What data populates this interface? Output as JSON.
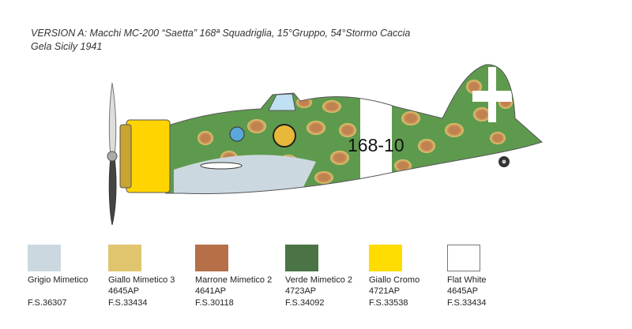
{
  "header": {
    "title_line1": "VERSION A: Macchi MC-200 “Saetta” 168ª Squadriglia, 15°Gruppo, 54°Stormo Caccia",
    "title_line2": "Gela Sicily 1941"
  },
  "aircraft": {
    "fuselage_code": "168-10"
  },
  "swatches": [
    {
      "name": "Grigio Mimetico",
      "code": "",
      "fs": "F.S.36307",
      "color": "#ccd8e0"
    },
    {
      "name": "Giallo Mimetico 3",
      "code": "4645AP",
      "fs": "F.S.33434",
      "color": "#e0c56e"
    },
    {
      "name": "Marrone Mimetico 2",
      "code": "4641AP",
      "fs": "F.S.30118",
      "color": "#b5704a"
    },
    {
      "name": "Verde Mimetico 2",
      "code": "4723AP",
      "fs": "F.S.34092",
      "color": "#4a7445"
    },
    {
      "name": "Giallo Cromo",
      "code": "4721AP",
      "fs": "F.S.33538",
      "color": "#ffdc00"
    },
    {
      "name": "Flat White",
      "code": "4645AP",
      "fs": "F.S.33434",
      "color": "#ffffff"
    }
  ]
}
